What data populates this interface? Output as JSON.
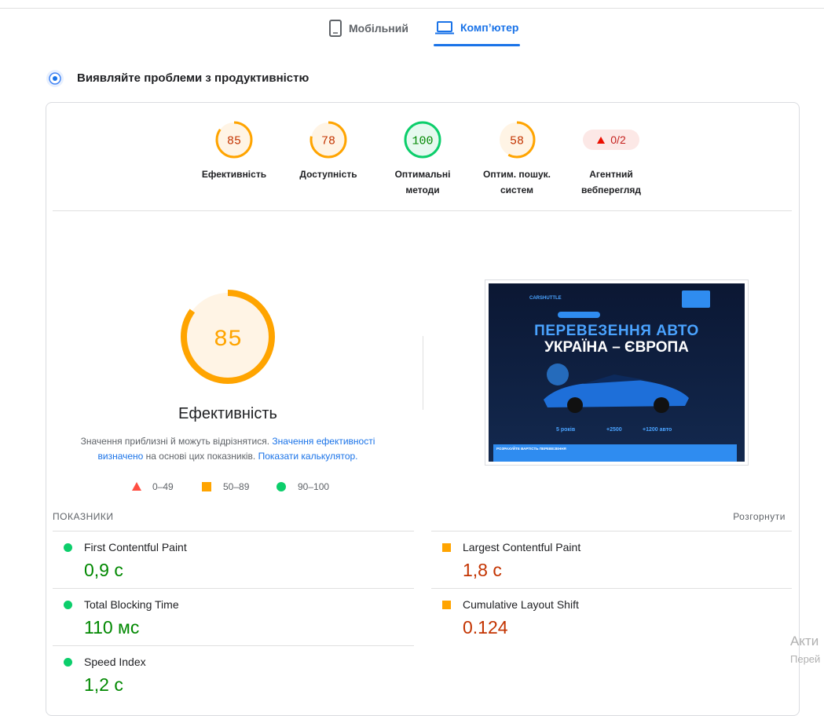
{
  "tabs": [
    "Мобільний",
    "Комп’ютер"
  ],
  "active_tab": 1,
  "section_title": "Виявляйте проблеми з продуктивністю",
  "scores": [
    {
      "value": 85,
      "label": "Ефективність",
      "rating": "average"
    },
    {
      "value": 78,
      "label": "Доступність",
      "rating": "average"
    },
    {
      "value": 100,
      "label": "Оптимальні методи",
      "rating": "good"
    },
    {
      "value": 58,
      "label": "Оптим. пошук. систем",
      "rating": "average"
    }
  ],
  "agentic": {
    "badge": "0/2",
    "label": "Агентний вебперегляд"
  },
  "note": {
    "text1": "Значення приблизні й можуть відрізнятися.",
    "link1": "Значення ефективності визначено",
    "text2": "на основі цих показників.",
    "link2": "Показати калькулятор."
  },
  "legend": [
    "0–49",
    "50–89",
    "90–100"
  ],
  "thumbnail": {
    "headline1": "ПЕРЕВЕЗЕННЯ АВТО",
    "headline2": "УКРАЇНА – ЄВРОПА",
    "brand": "CARSHUTTLE",
    "stats": [
      "5 років",
      "+2500",
      "+1200 авто"
    ],
    "bar": "РОЗРАХУЙТЕ ВАРТІСТЬ ПЕРЕВЕЗЕННЯ"
  },
  "metrics_title": "ПОКАЗНИКИ",
  "expand": "Розгорнути",
  "metrics": [
    {
      "name": "First Contentful Paint",
      "value": "0,9 с",
      "rating": "good"
    },
    {
      "name": "Largest Contentful Paint",
      "value": "1,8 с",
      "rating": "average"
    },
    {
      "name": "Total Blocking Time",
      "value": "110 мс",
      "rating": "good"
    },
    {
      "name": "Cumulative Layout Shift",
      "value": "0.124",
      "rating": "average"
    },
    {
      "name": "Speed Index",
      "value": "1,2 с",
      "rating": "good"
    }
  ],
  "watermark": [
    "Акти",
    "Перей"
  ]
}
